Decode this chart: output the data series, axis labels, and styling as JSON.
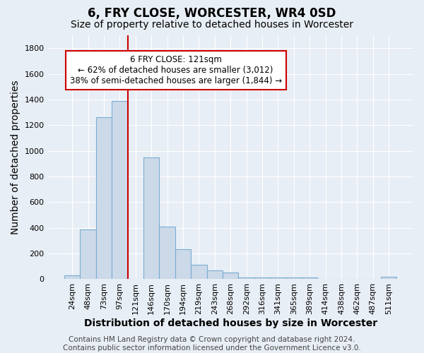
{
  "title": "6, FRY CLOSE, WORCESTER, WR4 0SD",
  "subtitle": "Size of property relative to detached houses in Worcester",
  "xlabel": "Distribution of detached houses by size in Worcester",
  "ylabel": "Number of detached properties",
  "bar_labels": [
    "24sqm",
    "48sqm",
    "73sqm",
    "97sqm",
    "121sqm",
    "146sqm",
    "170sqm",
    "194sqm",
    "219sqm",
    "243sqm",
    "268sqm",
    "292sqm",
    "316sqm",
    "341sqm",
    "365sqm",
    "389sqm",
    "414sqm",
    "438sqm",
    "462sqm",
    "487sqm",
    "511sqm"
  ],
  "bar_values": [
    30,
    390,
    1260,
    1390,
    0,
    950,
    410,
    235,
    115,
    70,
    50,
    15,
    15,
    15,
    15,
    15,
    0,
    0,
    0,
    0,
    20
  ],
  "bar_color": "#ccd9e8",
  "bar_edge_color": "#7aaed4",
  "bar_width": 1.0,
  "vline_x": 4,
  "vline_color": "#cc0000",
  "ylim": [
    0,
    1900
  ],
  "yticks": [
    0,
    200,
    400,
    600,
    800,
    1000,
    1200,
    1400,
    1600,
    1800
  ],
  "annotation_text": "6 FRY CLOSE: 121sqm\n← 62% of detached houses are smaller (3,012)\n38% of semi-detached houses are larger (1,844) →",
  "annotation_box_color": "#ffffff",
  "annotation_box_edge": "#cc0000",
  "footer_text": "Contains HM Land Registry data © Crown copyright and database right 2024.\nContains public sector information licensed under the Government Licence v3.0.",
  "background_color": "#e8eef5",
  "plot_background": "#e8eef5",
  "grid_color": "#ffffff",
  "title_fontsize": 12,
  "subtitle_fontsize": 10,
  "axis_label_fontsize": 10,
  "tick_fontsize": 8,
  "footer_fontsize": 7.5
}
